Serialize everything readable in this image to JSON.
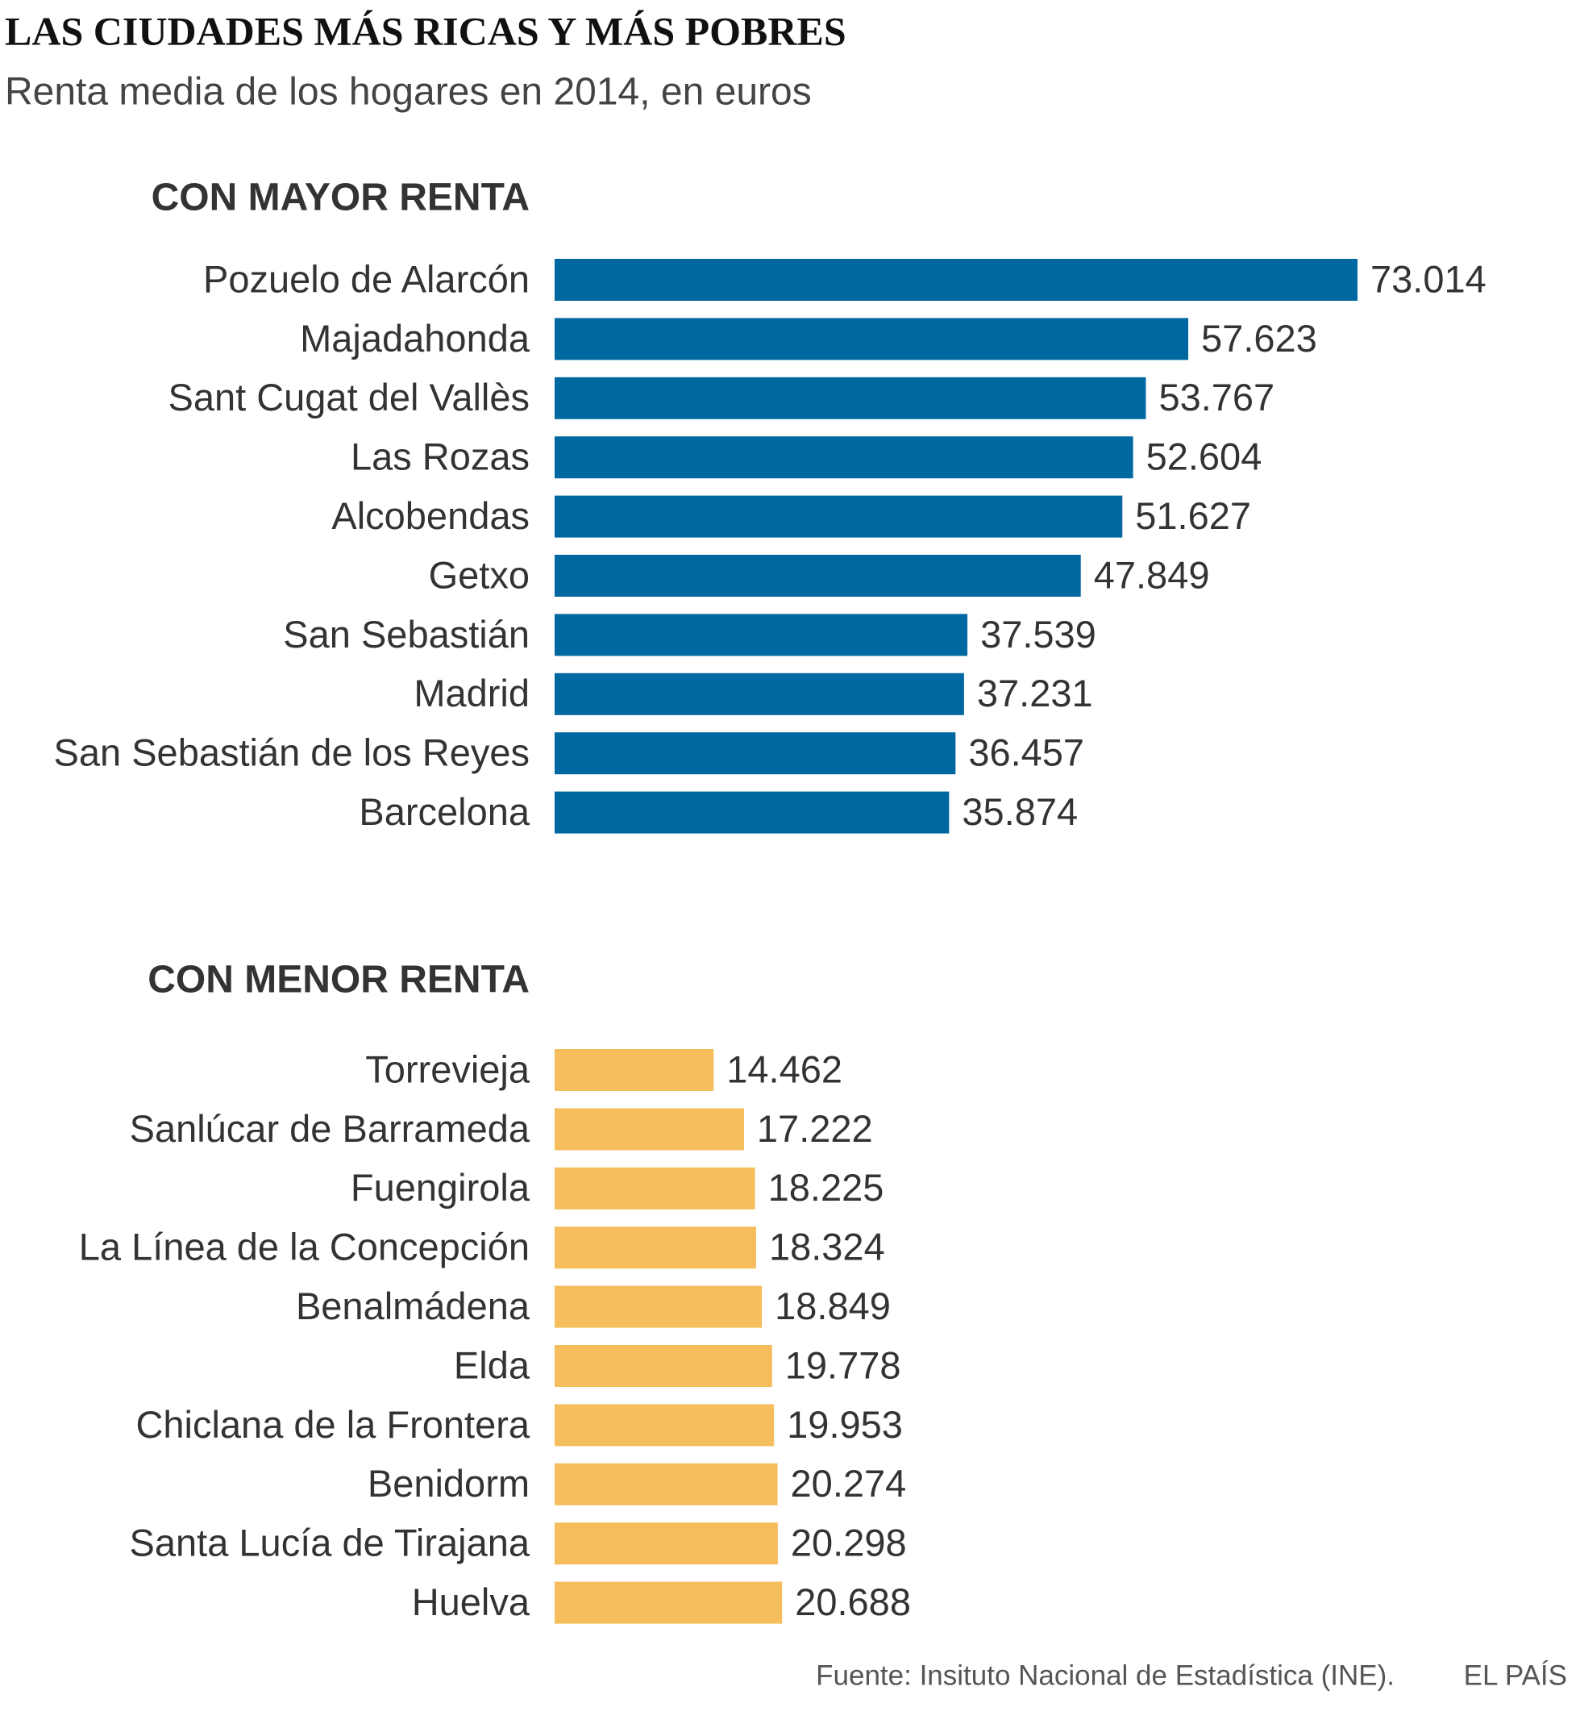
{
  "header": {
    "title": "LAS CIUDADES MÁS RICAS Y MÁS POBRES",
    "subtitle": "Renta media de los hogares en 2014, en euros"
  },
  "chart_data": [
    {
      "type": "bar",
      "title": "CON MAYOR RENTA",
      "color": "#0068a1",
      "categories": [
        "Pozuelo de Alarcón",
        "Majadahonda",
        "Sant Cugat del Vallès",
        "Las Rozas",
        "Alcobendas",
        "Getxo",
        "San Sebastián",
        "Madrid",
        "San Sebastián de los Reyes",
        "Barcelona"
      ],
      "values": [
        73014,
        57623,
        53767,
        52604,
        51627,
        47849,
        37539,
        37231,
        36457,
        35874
      ],
      "value_labels": [
        "73.014",
        "57.623",
        "53.767",
        "52.604",
        "51.627",
        "47.849",
        "37.539",
        "37.231",
        "36.457",
        "35.874"
      ]
    },
    {
      "type": "bar",
      "title": "CON MENOR RENTA",
      "color": "#f5bd5c",
      "categories": [
        "Torrevieja",
        "Sanlúcar de Barrameda",
        "Fuengirola",
        "La Línea de la Concepción",
        "Benalmádena",
        "Elda",
        "Chiclana de la Frontera",
        "Benidorm",
        "Santa Lucía de Tirajana",
        "Huelva"
      ],
      "values": [
        14462,
        17222,
        18225,
        18324,
        18849,
        19778,
        19953,
        20274,
        20298,
        20688
      ],
      "value_labels": [
        "14.462",
        "17.222",
        "18.225",
        "18.324",
        "18.849",
        "19.778",
        "19.953",
        "20.274",
        "20.298",
        "20.688"
      ]
    }
  ],
  "footer": {
    "source": "Fuente: Insituto Nacional de Estadística (INE).",
    "brand": "EL PAÍS"
  }
}
